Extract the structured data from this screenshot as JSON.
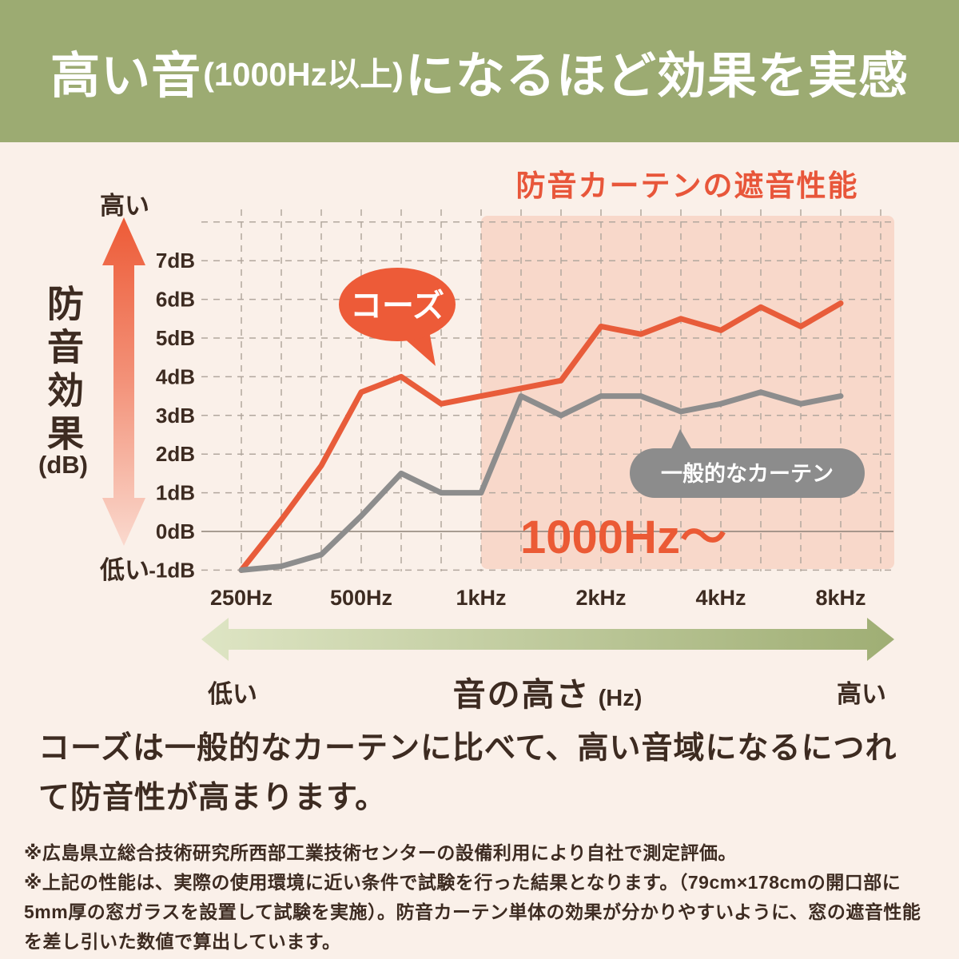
{
  "header": {
    "main": "高い音",
    "paren": "(1000Hz以上)",
    "rest": "になるほど効果を実感"
  },
  "chart": {
    "title": "防音カーテンの遮音性能",
    "y_axis": {
      "high_label": "高い",
      "label": "防音効果",
      "unit": "(dB)",
      "low_label": "低い"
    },
    "x_axis": {
      "low_label": "低い",
      "label": "音の高さ",
      "unit": "(Hz)",
      "high_label": "高い"
    },
    "series1_bubble": "コーズ",
    "series2_bubble": "一般的なカーテン",
    "highlight_label": "1000Hz〜"
  },
  "chart_data": {
    "type": "line",
    "title": "防音カーテンの遮音性能",
    "xlabel": "音の高さ (Hz)",
    "ylabel": "防音効果 (dB)",
    "x_scale": "one-third-octave (log spacing, equal steps)",
    "x_hz": [
      250,
      315,
      400,
      500,
      630,
      800,
      1000,
      1250,
      1600,
      2000,
      2500,
      3150,
      4000,
      5000,
      6300,
      8000
    ],
    "xticks": [
      {
        "hz": 250,
        "label": "250Hz"
      },
      {
        "hz": 500,
        "label": "500Hz"
      },
      {
        "hz": 1000,
        "label": "1kHz"
      },
      {
        "hz": 2000,
        "label": "2kHz"
      },
      {
        "hz": 4000,
        "label": "4kHz"
      },
      {
        "hz": 8000,
        "label": "8kHz"
      }
    ],
    "yticks": [
      {
        "value": 7,
        "label": "7dB"
      },
      {
        "value": 6,
        "label": "6dB"
      },
      {
        "value": 5,
        "label": "5dB"
      },
      {
        "value": 4,
        "label": "4dB"
      },
      {
        "value": 3,
        "label": "3dB"
      },
      {
        "value": 2,
        "label": "2dB"
      },
      {
        "value": 1,
        "label": "1dB"
      },
      {
        "value": 0,
        "label": "0dB"
      },
      {
        "value": -1,
        "label": "-1dB"
      }
    ],
    "ylim": [
      -1,
      8
    ],
    "grid": "dashed gridlines, solid zero line",
    "series": [
      {
        "name": "コーズ",
        "color": "#E85C3A",
        "values": [
          -1,
          0.3,
          1.7,
          3.6,
          4.0,
          3.3,
          3.5,
          3.7,
          3.9,
          5.3,
          5.1,
          5.5,
          5.2,
          5.8,
          5.3,
          5.9
        ]
      },
      {
        "name": "一般的なカーテン",
        "color": "#8D8D8D",
        "values": [
          -1,
          -0.9,
          -0.6,
          0.4,
          1.5,
          1.0,
          1.0,
          3.5,
          3.0,
          3.5,
          3.5,
          3.1,
          3.3,
          3.6,
          3.3,
          3.5
        ]
      }
    ],
    "highlight_region": {
      "start_hz": 1000,
      "label": "1000Hz〜",
      "color": "#F8D8CA"
    }
  },
  "body": {
    "line1": "コーズは一般的なカーテンに比べて、高い音域になるにつれ",
    "line2": "て防音性が高まります。"
  },
  "footnotes": {
    "lines": [
      "※広島県立総合技術研究所西部工業技術センターの設備利用により自社で測定評価。",
      "※上記の性能は、実際の使用環境に近い条件で試験を行った結果となります。（79cm×178cmの開口部に",
      "5mm厚の窓ガラスを設置して試験を実施）。防音カーテン単体の効果が分かりやすいように、窓の遮音性能",
      "を差し引いた数値で算出しています。"
    ]
  },
  "colors": {
    "accent": "#E85C3A",
    "header_bg": "#9CAB72",
    "page_bg": "#FAF0E9",
    "highlight_fill": "#F8D8CA",
    "gray_series": "#8D8D8D",
    "text_dark": "#3D2B21"
  }
}
